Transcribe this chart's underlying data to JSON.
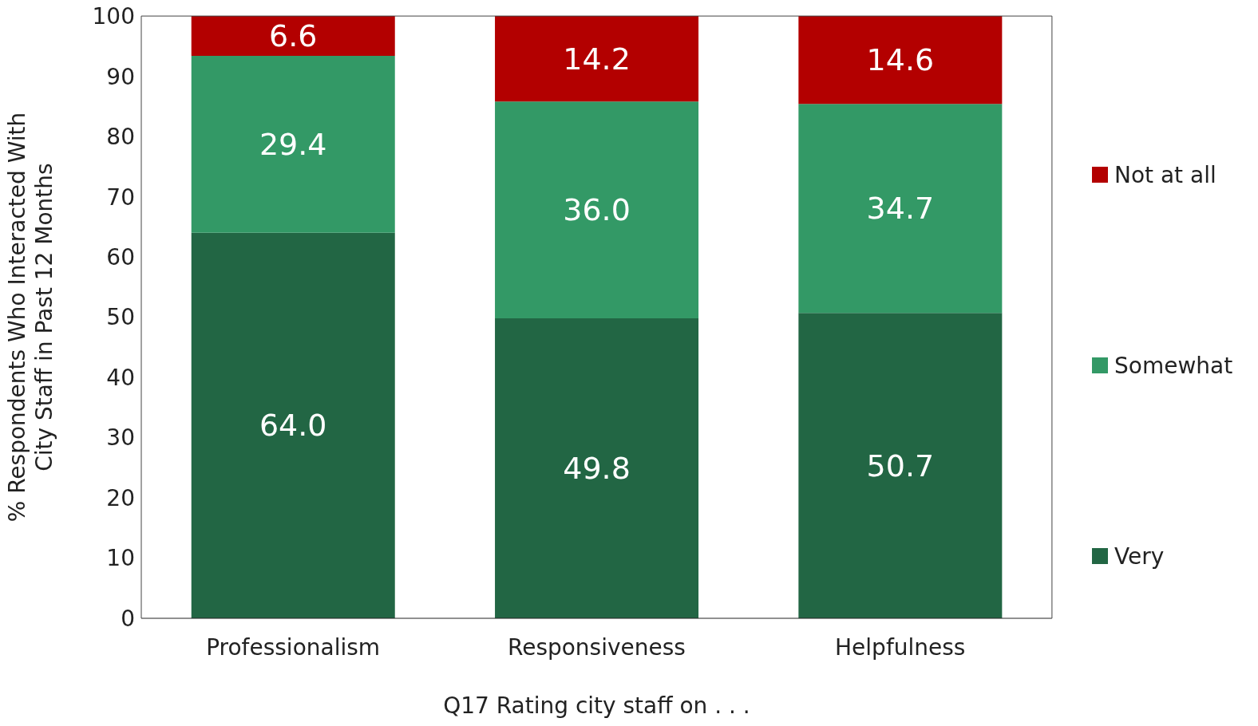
{
  "chart_data": {
    "type": "bar",
    "stacked": true,
    "xlabel": "Q17 Rating city staff on . . .",
    "ylabel": "% Respondents Who Interacted With\nCity Staff in Past 12 Months",
    "categories": [
      "Professionalism",
      "Responsiveness",
      "Helpfulness"
    ],
    "series": [
      {
        "name": "Very",
        "color": "#226644",
        "values": [
          64.0,
          49.8,
          50.7
        ],
        "value_labels": [
          "64.0",
          "49.8",
          "50.7"
        ]
      },
      {
        "name": "Somewhat",
        "color": "#339966",
        "values": [
          29.4,
          36.0,
          34.7
        ],
        "value_labels": [
          "29.4",
          "36.0",
          "34.7"
        ]
      },
      {
        "name": "Not at all",
        "color": "#b30000",
        "values": [
          6.6,
          14.2,
          14.6
        ],
        "value_labels": [
          "6.6",
          "14.2",
          "14.6"
        ]
      }
    ],
    "ylim": [
      0,
      100
    ],
    "yticks": [
      0,
      10,
      20,
      30,
      40,
      50,
      60,
      70,
      80,
      90,
      100
    ],
    "grid": false,
    "legend": "right"
  }
}
